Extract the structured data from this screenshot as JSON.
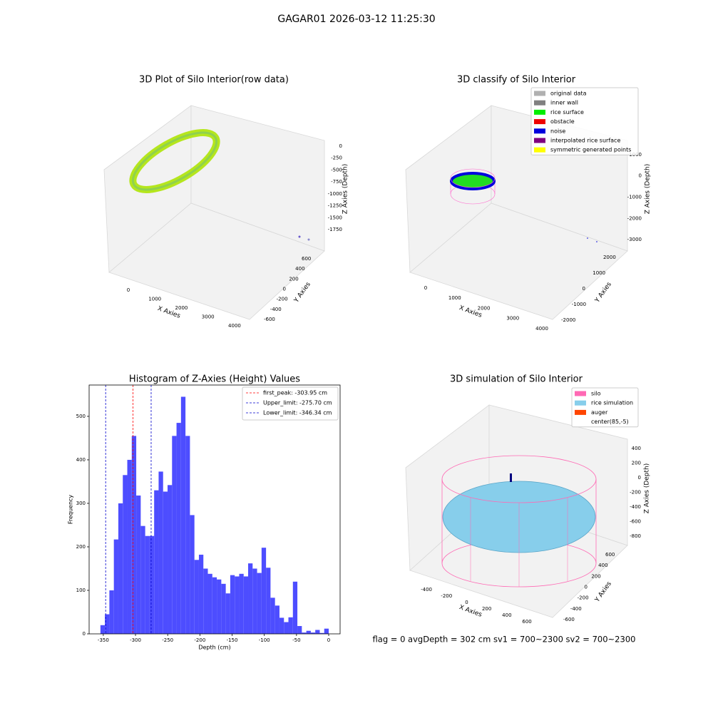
{
  "figure": {
    "title": "GAGAR01 2026-03-12 11:25:30",
    "footer": "flag = 0     avgDepth = 302 cm  sv1 = 700~2300  sv2 = 700~2300"
  },
  "chart_data": [
    {
      "type": "scatter3d",
      "title": "3D Plot of Silo Interior(row data)",
      "xlabel": "X Axies",
      "ylabel": "Y Axies",
      "zlabel": "Z Axies (Depth)",
      "xlim": [
        -700,
        4500
      ],
      "xticks": [
        0,
        1000,
        2000,
        3000,
        4000
      ],
      "ylim": [
        -700,
        700
      ],
      "yticks": [
        -600,
        -400,
        -200,
        0,
        200,
        400,
        600
      ],
      "zlim": [
        -1950,
        150
      ],
      "zticks": [
        0,
        -250,
        -500,
        -750,
        -1000,
        -1250,
        -1500,
        -1750
      ]
    },
    {
      "type": "scatter3d",
      "title": "3D classify of Silo Interior",
      "xlabel": "X Axies",
      "ylabel": "Y Axies",
      "zlabel": "Z Axies (Depth)",
      "xlim": [
        -700,
        4500
      ],
      "xticks": [
        0,
        1000,
        2000,
        3000,
        4000
      ],
      "ylim": [
        -2300,
        2300
      ],
      "yticks": [
        -2000,
        -1000,
        0,
        1000,
        2000
      ],
      "zlim": [
        -3300,
        1300
      ],
      "zticks": [
        1000,
        0,
        -1000,
        -2000,
        -3000
      ],
      "series": [
        {
          "name": "original data",
          "color": "#b0b0b0"
        },
        {
          "name": "inner wall",
          "color": "#808080"
        },
        {
          "name": "rice surface",
          "color": "#00ee00"
        },
        {
          "name": "obstacle",
          "color": "#ee0000"
        },
        {
          "name": "noise",
          "color": "#0000dd"
        },
        {
          "name": "interpolated rice surface",
          "color": "#800080"
        },
        {
          "name": "symmetric generated points",
          "color": "#ffff00"
        }
      ]
    },
    {
      "type": "histogram",
      "title": "Histogram of Z-Axies (Height) Values",
      "xlabel": "Depth (cm)",
      "ylabel": "Frequency",
      "color": "#4d4dff",
      "bins": [
        -354.45,
        -347.5,
        -340.55,
        -333.6,
        -326.65,
        -319.7,
        -312.75,
        -305.8,
        -298.85,
        -291.9,
        -284.95,
        -278.0,
        -271.05,
        -264.1,
        -257.15,
        -250.2,
        -243.25,
        -236.3,
        -229.35,
        -222.4,
        -215.45,
        -208.5,
        -201.55,
        -194.6,
        -187.65,
        -180.7,
        -173.75,
        -166.8,
        -159.85,
        -152.9,
        -145.95,
        -139.0,
        -132.05,
        -125.1,
        -118.15,
        -111.2,
        -104.25,
        -97.3,
        -90.35,
        -83.4,
        -76.45,
        -69.5,
        -62.55,
        -55.6,
        -48.65,
        -41.7,
        -34.75,
        -27.8,
        -20.85,
        -13.9,
        -6.95,
        0
      ],
      "values": [
        20,
        45,
        100,
        217,
        300,
        365,
        400,
        455,
        318,
        248,
        225,
        225,
        330,
        373,
        327,
        342,
        455,
        485,
        545,
        455,
        273,
        170,
        182,
        150,
        138,
        130,
        125,
        115,
        93,
        135,
        132,
        138,
        132,
        162,
        150,
        140,
        198,
        152,
        83,
        65,
        37,
        27,
        38,
        120,
        18,
        3,
        7,
        3,
        9,
        2,
        12
      ],
      "xlim": [
        -372,
        17.7
      ],
      "xticks": [
        -350,
        -300,
        -250,
        -200,
        -150,
        -100,
        -50,
        0
      ],
      "ylim": [
        0,
        572
      ],
      "yticks": [
        0,
        100,
        200,
        300,
        400,
        500
      ],
      "vlines": [
        {
          "value": -303.95,
          "label": "first_peak: -303.95 cm",
          "color": "#ff0000"
        },
        {
          "value": -275.7,
          "label": "Upper_limit: -275.70 cm",
          "color": "#0000cc"
        },
        {
          "value": -346.34,
          "label": "Lower_limit: -346.34 cm",
          "color": "#0000cc"
        }
      ]
    },
    {
      "type": "surface3d",
      "title": "3D simulation of Silo Interior",
      "xlabel": "X Axies",
      "ylabel": "Y Axies",
      "zlabel": "Z Axies (Depth)",
      "xlim": [
        -550,
        750
      ],
      "xticks": [
        -400,
        -200,
        0,
        200,
        400,
        600
      ],
      "ylim": [
        -700,
        700
      ],
      "yticks": [
        -600,
        -400,
        -200,
        0,
        200,
        400,
        600
      ],
      "zlim": [
        -900,
        500
      ],
      "zticks": [
        400,
        200,
        0,
        -200,
        -400,
        -600,
        -800
      ],
      "series": [
        {
          "name": "silo",
          "color": "#ff69b4"
        },
        {
          "name": "rice simulation",
          "color": "#87ceeb"
        },
        {
          "name": "auger",
          "color": "#ff4500"
        },
        {
          "name": "center(85,-5)",
          "color": "#ffffff"
        }
      ]
    }
  ]
}
